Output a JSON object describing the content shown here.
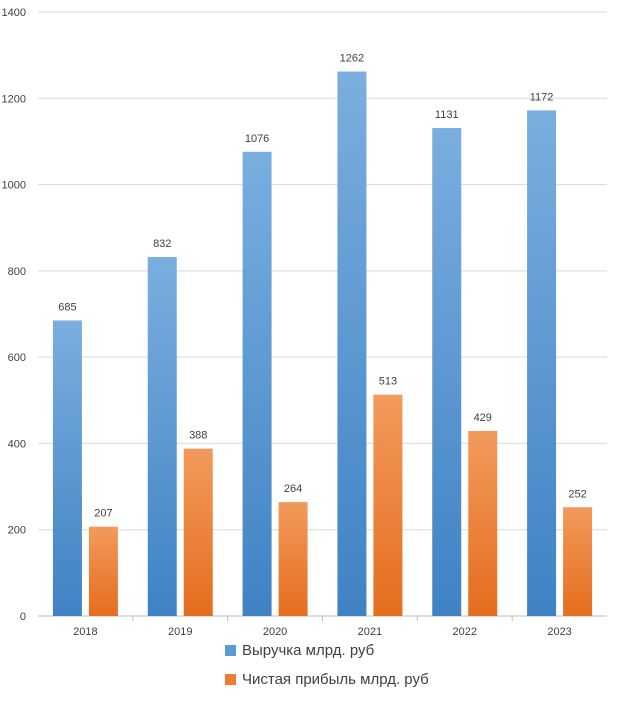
{
  "chart_data": {
    "type": "bar",
    "categories": [
      "2018",
      "2019",
      "2020",
      "2021",
      "2022",
      "2023"
    ],
    "series": [
      {
        "name": "Выручка млрд. руб",
        "values": [
          685,
          832,
          1076,
          1262,
          1131,
          1172
        ],
        "color": "#5B9BD5"
      },
      {
        "name": "Чистая прибыль млрд. руб",
        "values": [
          207,
          388,
          264,
          513,
          429,
          252
        ],
        "color": "#ED7D31"
      }
    ],
    "ylim": [
      0,
      1400
    ],
    "yticks": [
      0,
      200,
      400,
      600,
      800,
      1000,
      1200,
      1400
    ],
    "grid": true,
    "legend_position": "bottom",
    "data_labels": true
  }
}
